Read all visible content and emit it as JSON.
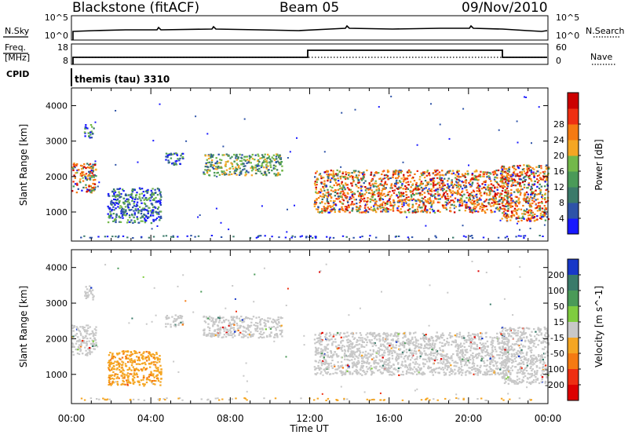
{
  "header": {
    "station": "Blackstone (fitACF)",
    "beam": "Beam 05",
    "date": "09/Nov/2010"
  },
  "strip_labels": {
    "nsky": "N.Sky",
    "freq_line1": "Freq.",
    "freq_line2": "[MHz]",
    "cpid": "CPID",
    "nsearch": "N.Search",
    "nave": "Nave",
    "cpid_value": "themis (tau) 3310"
  },
  "strip_ticks": {
    "noise_top_left": "10^5",
    "noise_bottom_left": "10^0",
    "noise_top_right": "10^5",
    "noise_bottom_right": "10^0",
    "freq_top": "18",
    "freq_bottom": "8",
    "nave_top": "60",
    "nave_bottom": "0"
  },
  "colors": {
    "frame": "#000000",
    "ground_scatter": "#c8c8c8"
  },
  "chart_data": [
    {
      "type": "heatmap",
      "panel": "power",
      "xlabel": "",
      "ylabel": "Slant Range [km]",
      "xlim": [
        0,
        24
      ],
      "ylim": [
        180,
        4500
      ],
      "yticks": [
        "1000",
        "2000",
        "3000",
        "4000"
      ],
      "colorbar": {
        "label": "Power [dB]",
        "ticks": [
          "4",
          "8",
          "12",
          "16",
          "20",
          "24",
          "28"
        ],
        "range": [
          0,
          32
        ],
        "colors": [
          "#1818ff",
          "#2e53a8",
          "#3b7a6a",
          "#4a9a58",
          "#73b84a",
          "#f5a623",
          "#f57a12",
          "#ee2f12",
          "#cc0000"
        ]
      },
      "regions": [
        {
          "t0": 0.0,
          "t1": 1.2,
          "r0": 1550,
          "r1": 2400,
          "level": "high"
        },
        {
          "t0": 0.6,
          "t1": 1.1,
          "r0": 3100,
          "r1": 3500,
          "level": "low"
        },
        {
          "t0": 1.8,
          "t1": 4.5,
          "r0": 700,
          "r1": 1700,
          "level": "low"
        },
        {
          "t0": 4.7,
          "t1": 5.6,
          "r0": 2350,
          "r1": 2700,
          "level": "low"
        },
        {
          "t0": 6.6,
          "t1": 10.6,
          "r0": 2050,
          "r1": 2650,
          "level": "mid"
        },
        {
          "t0": 12.2,
          "t1": 22.0,
          "r0": 1000,
          "r1": 2200,
          "level": "high"
        },
        {
          "t0": 21.6,
          "t1": 24.0,
          "r0": 750,
          "r1": 2350,
          "level": "high"
        }
      ]
    },
    {
      "type": "heatmap",
      "panel": "velocity",
      "xlabel": "Time UT",
      "ylabel": "Slant Range [km]",
      "xlim": [
        0,
        24
      ],
      "ylim": [
        180,
        4500
      ],
      "xticks": [
        "00:00",
        "04:00",
        "08:00",
        "12:00",
        "16:00",
        "20:00",
        "00:00"
      ],
      "yticks": [
        "1000",
        "2000",
        "3000",
        "4000"
      ],
      "colorbar": {
        "label": "Velocity [m s^-1]",
        "ticks": [
          "200",
          "100",
          "50",
          "15",
          "-15",
          "-50",
          "-100",
          "-200"
        ],
        "range": [
          -250,
          250
        ],
        "colors": [
          "#1838c8",
          "#3a7a6a",
          "#4a9a58",
          "#7fcc40",
          "#c8c8c8",
          "#f5a623",
          "#f57a12",
          "#ee2f12",
          "#dd0000"
        ]
      },
      "regions": [
        {
          "t0": 0.0,
          "t1": 1.2,
          "r0": 1550,
          "r1": 2400,
          "vel": "ground"
        },
        {
          "t0": 0.6,
          "t1": 1.1,
          "r0": 3100,
          "r1": 3500,
          "vel": "ground"
        },
        {
          "t0": 1.8,
          "t1": 4.5,
          "r0": 700,
          "r1": 1700,
          "vel": "negative"
        },
        {
          "t0": 4.7,
          "t1": 5.6,
          "r0": 2350,
          "r1": 2700,
          "vel": "ground"
        },
        {
          "t0": 6.6,
          "t1": 10.6,
          "r0": 2050,
          "r1": 2650,
          "vel": "ground"
        },
        {
          "t0": 12.2,
          "t1": 22.0,
          "r0": 1000,
          "r1": 2200,
          "vel": "ground"
        },
        {
          "t0": 21.6,
          "t1": 24.0,
          "r0": 750,
          "r1": 2350,
          "vel": "ground"
        }
      ]
    }
  ]
}
